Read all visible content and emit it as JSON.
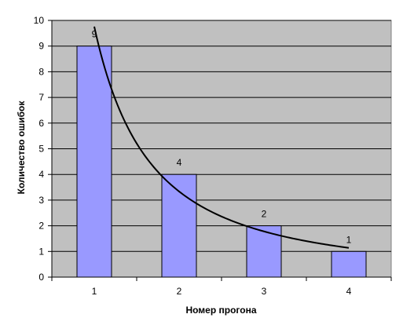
{
  "chart_data": {
    "type": "bar",
    "categories": [
      "1",
      "2",
      "3",
      "4"
    ],
    "values": [
      9,
      4,
      2,
      1
    ],
    "data_labels": [
      "9",
      "4",
      "2",
      "1"
    ],
    "xlabel": "Номер прогона",
    "ylabel": "Количество ошибок",
    "ylim": [
      0,
      10
    ],
    "y_ticks": [
      "0",
      "1",
      "2",
      "3",
      "4",
      "5",
      "6",
      "7",
      "8",
      "9",
      "10"
    ],
    "grid": true,
    "trendline": {
      "type": "power",
      "values": [
        8.7,
        4.0,
        2.0,
        0.95
      ]
    },
    "colors": {
      "plot_background": "#c0c0c0",
      "bar_fill": "#9999ff",
      "bar_stroke": "#000000",
      "gridline": "#000000",
      "trendline": "#000000"
    }
  }
}
